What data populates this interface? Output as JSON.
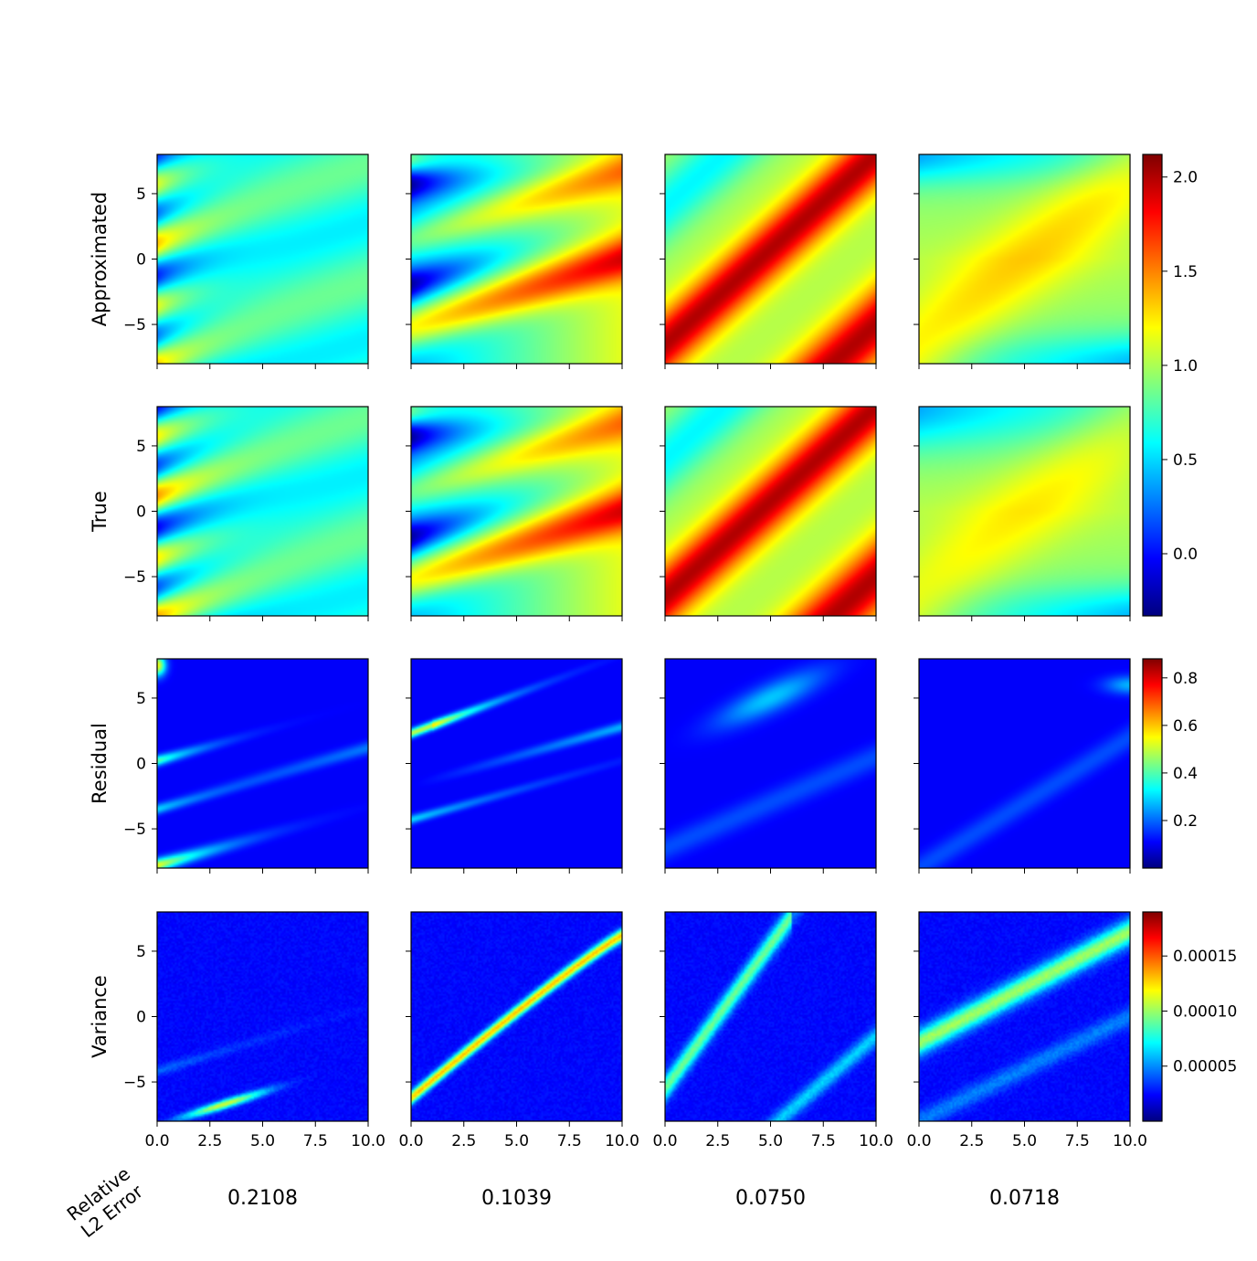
{
  "colors": {
    "colormap": "jet",
    "jet_stops": [
      "#00007f",
      "#0000ff",
      "#007fff",
      "#00ffff",
      "#7fff7f",
      "#ffff00",
      "#ff7f00",
      "#ff0000",
      "#7f0000"
    ]
  },
  "chart_data": {
    "type": "heatmap",
    "grid": {
      "rows": 4,
      "cols": 4
    },
    "row_labels": [
      "Approximated",
      "True",
      "Residual",
      "Variance"
    ],
    "x_axis": {
      "range": [
        0,
        10
      ],
      "ticks": [
        0.0,
        2.5,
        5.0,
        7.5,
        10.0
      ],
      "tick_labels": [
        "0.0",
        "2.5",
        "5.0",
        "7.5",
        "10.0"
      ]
    },
    "y_axis": {
      "range": [
        -8,
        8
      ],
      "ticks": [
        5,
        0,
        -5
      ],
      "tick_labels": [
        "5",
        "0",
        "−5"
      ]
    },
    "colorbars": [
      {
        "rows": [
          0,
          1
        ],
        "range": [
          -0.33,
          2.12
        ],
        "ticks": [
          2.0,
          1.5,
          1.0,
          0.5,
          0.0
        ],
        "tick_labels": [
          "2.0",
          "1.5",
          "1.0",
          "0.5",
          "0.0"
        ]
      },
      {
        "rows": [
          2
        ],
        "range": [
          0.0,
          0.88
        ],
        "ticks": [
          0.8,
          0.6,
          0.4,
          0.2
        ],
        "tick_labels": [
          "0.8",
          "0.6",
          "0.4",
          "0.2"
        ]
      },
      {
        "rows": [
          3
        ],
        "range": [
          0.0,
          0.00019
        ],
        "ticks": [
          0.00015,
          0.0001,
          5e-05
        ],
        "tick_labels": [
          "0.00015",
          "0.00010",
          "0.00005"
        ]
      }
    ],
    "bottom_label": [
      "Relative",
      "L2 Error"
    ],
    "column_metrics": [
      "0.2108",
      "0.1039",
      "0.0750",
      "0.0718"
    ]
  }
}
